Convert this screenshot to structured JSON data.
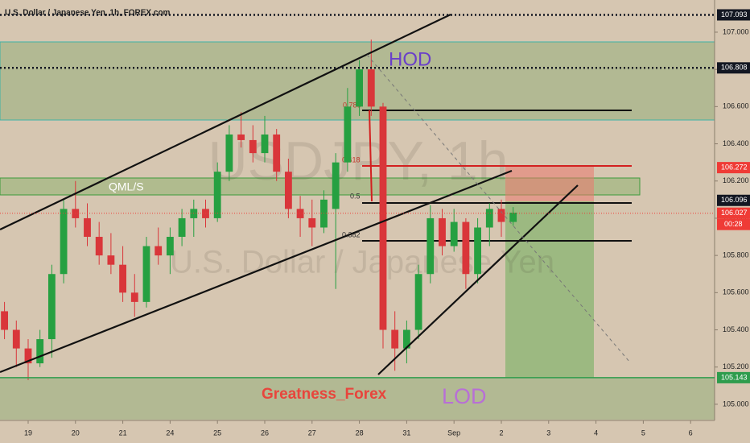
{
  "title": "U.S. Dollar / Japanese Yen, 1h, FOREX.com",
  "chart_data": {
    "type": "candlestick",
    "watermark": "USDJPY, 1h",
    "watermark_sub": "U.S. Dollar / Japanese Yen",
    "x": [
      -0.5,
      -0.25,
      0,
      0.25,
      0.5,
      0.75,
      1,
      1.25,
      1.5,
      1.75,
      2,
      2.25,
      2.5,
      2.75,
      3,
      3.25,
      3.5,
      3.75,
      4,
      4.25,
      4.5,
      4.75,
      5,
      5.25,
      5.5,
      5.75,
      6,
      6.25,
      6.5,
      6.75,
      7,
      7.25,
      7.5,
      7.75,
      8,
      8.25,
      8.5,
      8.75,
      9,
      9.25,
      9.5,
      9.75,
      10,
      10.25
    ],
    "open": [
      105.5,
      105.4,
      105.3,
      105.22,
      105.35,
      105.7,
      106.05,
      106.0,
      105.9,
      105.8,
      105.75,
      105.6,
      105.55,
      105.85,
      105.8,
      105.9,
      106.0,
      106.05,
      106.0,
      106.25,
      106.45,
      106.42,
      106.35,
      106.45,
      106.25,
      106.05,
      106.0,
      105.95,
      106.05,
      106.3,
      106.6,
      106.8,
      106.6,
      105.4,
      105.3,
      105.4,
      105.7,
      106.0,
      105.85,
      105.98,
      105.7,
      105.95,
      106.05,
      105.98
    ],
    "high": [
      105.55,
      105.45,
      105.35,
      105.4,
      105.75,
      106.1,
      106.2,
      106.08,
      105.98,
      105.92,
      105.85,
      105.7,
      105.9,
      105.95,
      105.95,
      106.05,
      106.1,
      106.1,
      106.3,
      106.5,
      106.57,
      106.5,
      106.55,
      106.48,
      106.32,
      106.12,
      106.1,
      106.15,
      106.35,
      106.7,
      106.85,
      106.96,
      106.62,
      105.5,
      105.45,
      105.75,
      106.07,
      106.05,
      106.05,
      106.0,
      106.0,
      106.08,
      106.1,
      106.06
    ],
    "low": [
      105.35,
      105.2,
      105.13,
      105.2,
      105.25,
      105.65,
      105.95,
      105.85,
      105.75,
      105.7,
      105.55,
      105.47,
      105.52,
      105.75,
      105.7,
      105.85,
      105.9,
      105.95,
      105.98,
      106.2,
      106.38,
      106.3,
      106.3,
      106.2,
      106.0,
      105.9,
      105.85,
      105.92,
      105.62,
      106.25,
      106.55,
      106.55,
      105.3,
      105.18,
      105.22,
      105.35,
      105.65,
      105.8,
      105.82,
      105.62,
      105.65,
      105.85,
      105.9,
      105.96
    ],
    "close": [
      105.4,
      105.3,
      105.22,
      105.35,
      105.7,
      106.05,
      106.0,
      105.9,
      105.8,
      105.75,
      105.6,
      105.55,
      105.85,
      105.8,
      105.9,
      106.0,
      106.05,
      106.0,
      106.25,
      106.45,
      106.42,
      106.35,
      106.45,
      106.25,
      106.05,
      106.0,
      105.95,
      106.1,
      106.3,
      106.6,
      106.8,
      106.6,
      105.4,
      105.3,
      105.4,
      105.7,
      106.0,
      105.85,
      105.98,
      105.7,
      105.95,
      106.05,
      105.98,
      106.03
    ],
    "up_color": "#26a041",
    "down_color": "#d9363a",
    "xlim": [
      -0.595,
      14.507
    ],
    "xticks": [
      {
        "value": 0,
        "label": "19"
      },
      {
        "value": 1,
        "label": "20"
      },
      {
        "value": 2,
        "label": "21"
      },
      {
        "value": 3,
        "label": "24"
      },
      {
        "value": 4,
        "label": "25"
      },
      {
        "value": 5,
        "label": "26"
      },
      {
        "value": 6,
        "label": "27"
      },
      {
        "value": 7,
        "label": "28"
      },
      {
        "value": 8,
        "label": "31"
      },
      {
        "value": 9,
        "label": "Sep"
      },
      {
        "value": 10,
        "label": "2"
      },
      {
        "value": 11,
        "label": "3"
      },
      {
        "value": 12,
        "label": "4"
      },
      {
        "value": 13,
        "label": "5"
      },
      {
        "value": 14,
        "label": "6"
      }
    ],
    "ylim": [
      104.913,
      107.173
    ],
    "yticks": [
      {
        "value": 105,
        "label": "105.000"
      },
      {
        "value": 105.2,
        "label": "105.200"
      },
      {
        "value": 105.4,
        "label": "105.400"
      },
      {
        "value": 105.6,
        "label": "105.600"
      },
      {
        "value": 105.8,
        "label": "105.800"
      },
      {
        "value": 106,
        "label": "106.000"
      },
      {
        "value": 106.2,
        "label": "106.200"
      },
      {
        "value": 106.4,
        "label": "106.400"
      },
      {
        "value": 106.6,
        "label": "106.600"
      },
      {
        "value": 106.8,
        "label": "106.800"
      },
      {
        "value": 107,
        "label": "107.000"
      }
    ],
    "price_lines": [
      {
        "value": 107.093,
        "color": "#131722",
        "style": "dotted"
      },
      {
        "value": 106.808,
        "color": "#131722",
        "style": "dotted"
      },
      {
        "value": 106.272,
        "color": "#ef3b36",
        "style": "none"
      },
      {
        "value": 106.096,
        "color": "#131722",
        "style": "none"
      },
      {
        "value": 106.027,
        "color": "#ef3b36",
        "style": "dotted-thin"
      },
      {
        "value": 105.143,
        "color": "#2e9c4d",
        "style": "solid"
      }
    ],
    "countdown": "00:28",
    "fib_labels": [
      "0.786",
      "0.618",
      "0.5",
      "0.382"
    ],
    "annotations": {
      "hod": "HOD",
      "lod": "LOD",
      "qml": "QML/S",
      "author": "Greatness_Forex"
    }
  }
}
